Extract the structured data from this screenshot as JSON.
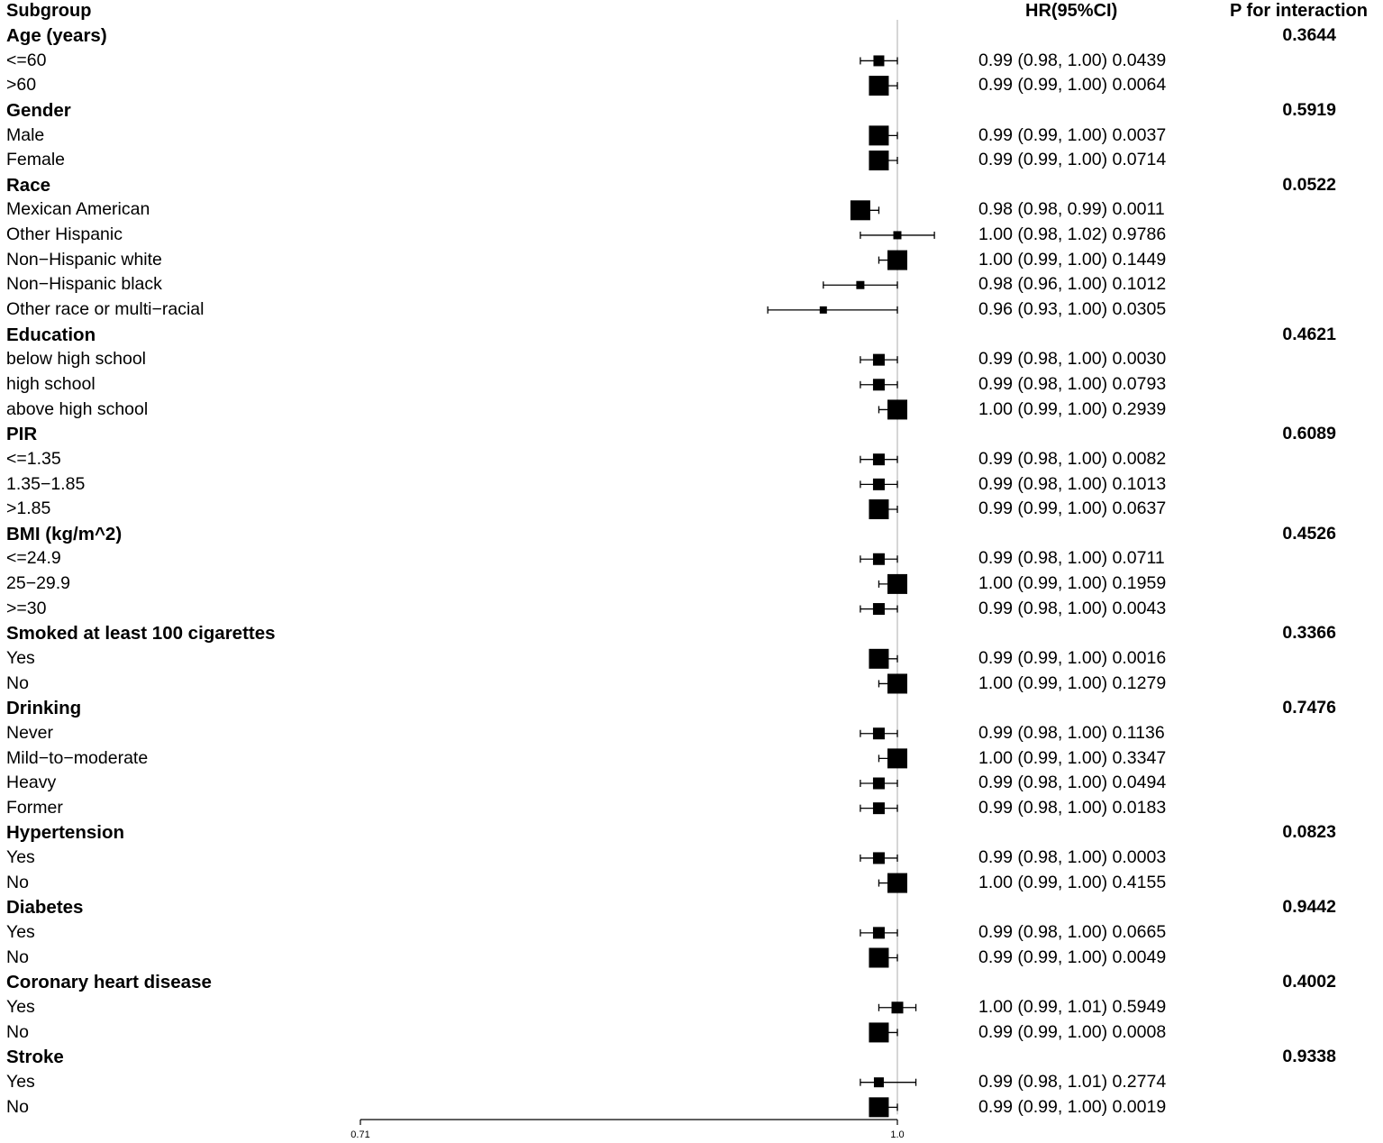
{
  "headers": {
    "subgroup": "Subgroup",
    "hr": "HR(95%CI)",
    "p": "P for interaction"
  },
  "chart_data": {
    "type": "forest",
    "xlim": [
      0.71,
      1.0
    ],
    "reference_line": 1.0,
    "axis_ticks": [
      "0.71",
      "1.0"
    ],
    "rows": [
      {
        "label": "Age (years)",
        "header": true,
        "p_interaction": "0.3644"
      },
      {
        "label": "<=60",
        "hr": 0.99,
        "lo": 0.98,
        "hi": 1.0,
        "text": "0.99 (0.98, 1.00) 0.0439",
        "size": 12
      },
      {
        "label": ">60",
        "hr": 0.99,
        "lo": 0.99,
        "hi": 1.0,
        "text": "0.99 (0.99, 1.00) 0.0064",
        "size": 22
      },
      {
        "label": "Gender",
        "header": true,
        "p_interaction": "0.5919"
      },
      {
        "label": "Male",
        "hr": 0.99,
        "lo": 0.99,
        "hi": 1.0,
        "text": "0.99 (0.99, 1.00) 0.0037",
        "size": 22
      },
      {
        "label": "Female",
        "hr": 0.99,
        "lo": 0.99,
        "hi": 1.0,
        "text": "0.99 (0.99, 1.00) 0.0714",
        "size": 22
      },
      {
        "label": "Race",
        "header": true,
        "p_interaction": "0.0522"
      },
      {
        "label": "Mexican American",
        "hr": 0.98,
        "lo": 0.98,
        "hi": 0.99,
        "text": "0.98 (0.98, 0.99) 0.0011",
        "size": 22
      },
      {
        "label": "Other Hispanic",
        "hr": 1.0,
        "lo": 0.98,
        "hi": 1.02,
        "text": "1.00 (0.98, 1.02) 0.9786",
        "size": 9
      },
      {
        "label": "Non−Hispanic white",
        "hr": 1.0,
        "lo": 0.99,
        "hi": 1.0,
        "text": "1.00 (0.99, 1.00) 0.1449",
        "size": 22
      },
      {
        "label": "Non−Hispanic black",
        "hr": 0.98,
        "lo": 0.96,
        "hi": 1.0,
        "text": "0.98 (0.96, 1.00) 0.1012",
        "size": 9
      },
      {
        "label": "Other race or multi−racial",
        "hr": 0.96,
        "lo": 0.93,
        "hi": 1.0,
        "text": "0.96 (0.93, 1.00) 0.0305",
        "size": 8
      },
      {
        "label": "Education",
        "header": true,
        "p_interaction": "0.4621"
      },
      {
        "label": "below high school",
        "hr": 0.99,
        "lo": 0.98,
        "hi": 1.0,
        "text": "0.99 (0.98, 1.00) 0.0030",
        "size": 13
      },
      {
        "label": "high school",
        "hr": 0.99,
        "lo": 0.98,
        "hi": 1.0,
        "text": "0.99 (0.98, 1.00) 0.0793",
        "size": 13
      },
      {
        "label": "above high school",
        "hr": 1.0,
        "lo": 0.99,
        "hi": 1.0,
        "text": "1.00 (0.99, 1.00) 0.2939",
        "size": 22
      },
      {
        "label": "PIR",
        "header": true,
        "p_interaction": "0.6089"
      },
      {
        "label": "<=1.35",
        "hr": 0.99,
        "lo": 0.98,
        "hi": 1.0,
        "text": "0.99 (0.98, 1.00) 0.0082",
        "size": 13
      },
      {
        "label": "1.35−1.85",
        "hr": 0.99,
        "lo": 0.98,
        "hi": 1.0,
        "text": "0.99 (0.98, 1.00) 0.1013",
        "size": 13
      },
      {
        "label": ">1.85",
        "hr": 0.99,
        "lo": 0.99,
        "hi": 1.0,
        "text": "0.99 (0.99, 1.00) 0.0637",
        "size": 22
      },
      {
        "label": "BMI (kg/m^2)",
        "header": true,
        "p_interaction": "0.4526"
      },
      {
        "label": "<=24.9",
        "hr": 0.99,
        "lo": 0.98,
        "hi": 1.0,
        "text": "0.99 (0.98, 1.00) 0.0711",
        "size": 13
      },
      {
        "label": "25−29.9",
        "hr": 1.0,
        "lo": 0.99,
        "hi": 1.0,
        "text": "1.00 (0.99, 1.00) 0.1959",
        "size": 22
      },
      {
        "label": ">=30",
        "hr": 0.99,
        "lo": 0.98,
        "hi": 1.0,
        "text": "0.99 (0.98, 1.00) 0.0043",
        "size": 13
      },
      {
        "label": "Smoked at least 100 cigarettes",
        "header": true,
        "p_interaction": "0.3366"
      },
      {
        "label": "Yes",
        "hr": 0.99,
        "lo": 0.99,
        "hi": 1.0,
        "text": "0.99 (0.99, 1.00) 0.0016",
        "size": 22
      },
      {
        "label": "No",
        "hr": 1.0,
        "lo": 0.99,
        "hi": 1.0,
        "text": "1.00 (0.99, 1.00) 0.1279",
        "size": 22
      },
      {
        "label": "Drinking",
        "header": true,
        "p_interaction": "0.7476"
      },
      {
        "label": "Never",
        "hr": 0.99,
        "lo": 0.98,
        "hi": 1.0,
        "text": "0.99 (0.98, 1.00) 0.1136",
        "size": 13
      },
      {
        "label": "Mild−to−moderate",
        "hr": 1.0,
        "lo": 0.99,
        "hi": 1.0,
        "text": "1.00 (0.99, 1.00) 0.3347",
        "size": 22
      },
      {
        "label": "Heavy",
        "hr": 0.99,
        "lo": 0.98,
        "hi": 1.0,
        "text": "0.99 (0.98, 1.00) 0.0494",
        "size": 13
      },
      {
        "label": "Former",
        "hr": 0.99,
        "lo": 0.98,
        "hi": 1.0,
        "text": "0.99 (0.98, 1.00) 0.0183",
        "size": 13
      },
      {
        "label": "Hypertension",
        "header": true,
        "p_interaction": "0.0823"
      },
      {
        "label": "Yes",
        "hr": 0.99,
        "lo": 0.98,
        "hi": 1.0,
        "text": "0.99 (0.98, 1.00) 0.0003",
        "size": 13
      },
      {
        "label": "No",
        "hr": 1.0,
        "lo": 0.99,
        "hi": 1.0,
        "text": "1.00 (0.99, 1.00) 0.4155",
        "size": 22
      },
      {
        "label": "Diabetes",
        "header": true,
        "p_interaction": "0.9442"
      },
      {
        "label": "Yes",
        "hr": 0.99,
        "lo": 0.98,
        "hi": 1.0,
        "text": "0.99 (0.98, 1.00) 0.0665",
        "size": 13
      },
      {
        "label": "No",
        "hr": 0.99,
        "lo": 0.99,
        "hi": 1.0,
        "text": "0.99 (0.99, 1.00) 0.0049",
        "size": 22
      },
      {
        "label": "Coronary heart disease",
        "header": true,
        "p_interaction": "0.4002"
      },
      {
        "label": "Yes",
        "hr": 1.0,
        "lo": 0.99,
        "hi": 1.01,
        "text": "1.00 (0.99, 1.01) 0.5949",
        "size": 13
      },
      {
        "label": "No",
        "hr": 0.99,
        "lo": 0.99,
        "hi": 1.0,
        "text": "0.99 (0.99, 1.00) 0.0008",
        "size": 22
      },
      {
        "label": "Stroke",
        "header": true,
        "p_interaction": "0.9338"
      },
      {
        "label": "Yes",
        "hr": 0.99,
        "lo": 0.98,
        "hi": 1.01,
        "text": "0.99 (0.98, 1.01) 0.2774",
        "size": 11
      },
      {
        "label": "No",
        "hr": 0.99,
        "lo": 0.99,
        "hi": 1.0,
        "text": "0.99 (0.99, 1.00) 0.0019",
        "size": 22
      }
    ]
  }
}
